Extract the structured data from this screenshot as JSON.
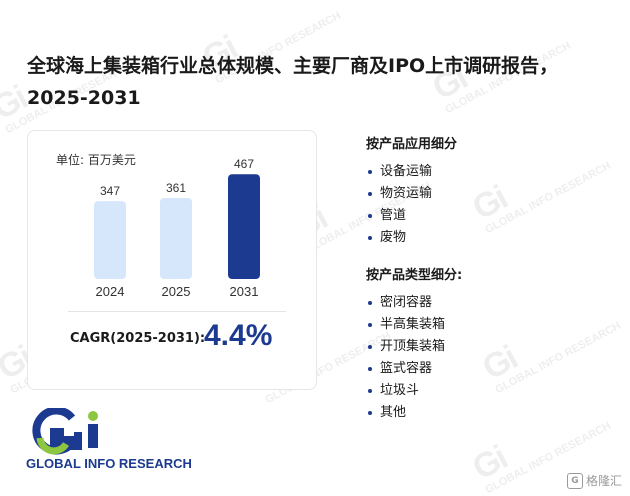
{
  "report_title": "全球海上集装箱行业总体规模、主要厂商及IPO上市调研报告，2025-2031",
  "watermark_text": "GLOBAL INFO RESEARCH",
  "chart_data": {
    "type": "bar",
    "unit_label": "单位: 百万美元",
    "categories": [
      "2024",
      "2025",
      "2031"
    ],
    "values": [
      347,
      361,
      467
    ],
    "colors": [
      "#d6e6fb",
      "#d6e6fb",
      "#1c3a8f"
    ],
    "cagr_label": "CAGR(2025-2031):",
    "cagr_value": "4.4%"
  },
  "application_section": {
    "heading": "按产品应用细分",
    "items": [
      "设备运输",
      "物资运输",
      "管道",
      "废物"
    ]
  },
  "type_section": {
    "heading": "按产品类型细分:",
    "items": [
      "密闭容器",
      "半高集装箱",
      "开顶集装箱",
      "篮式容器",
      "垃圾斗",
      "其他"
    ]
  },
  "logo_text": "GLOBAL INFO RESEARCH",
  "brand_text": "格隆汇",
  "brand_colors": {
    "primary": "#1c3a8f",
    "accent": "#8dc63f"
  }
}
